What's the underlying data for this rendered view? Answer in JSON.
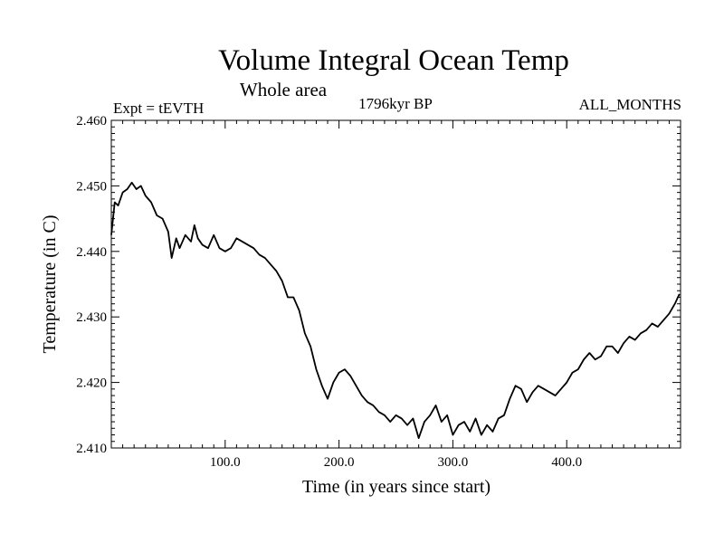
{
  "chart_data": {
    "type": "line",
    "title": "Volume Integral Ocean Temp",
    "subtitle": "Whole area",
    "left_label": "Expt = tEVTH",
    "center_label": "1796kyr BP",
    "right_label": "ALL_MONTHS",
    "xlabel": "Time (in years since start)",
    "ylabel": "Temperature (in C)",
    "xlim": [
      0,
      500
    ],
    "ylim": [
      2.41,
      2.46
    ],
    "x_ticks": [
      {
        "value": 100,
        "label": "100.0"
      },
      {
        "value": 200,
        "label": "200.0"
      },
      {
        "value": 300,
        "label": "300.0"
      },
      {
        "value": 400,
        "label": "400.0"
      }
    ],
    "y_ticks": [
      {
        "value": 2.41,
        "label": "2.410"
      },
      {
        "value": 2.42,
        "label": "2.420"
      },
      {
        "value": 2.43,
        "label": "2.430"
      },
      {
        "value": 2.44,
        "label": "2.440"
      },
      {
        "value": 2.45,
        "label": "2.450"
      },
      {
        "value": 2.46,
        "label": "2.460"
      }
    ],
    "series": [
      {
        "name": "Volume Integral Ocean Temp",
        "x": [
          0,
          3,
          6,
          10,
          14,
          18,
          22,
          26,
          30,
          35,
          40,
          45,
          50,
          53,
          57,
          60,
          65,
          70,
          73,
          76,
          80,
          85,
          90,
          95,
          100,
          105,
          110,
          115,
          120,
          125,
          130,
          135,
          140,
          145,
          150,
          155,
          160,
          165,
          170,
          175,
          180,
          185,
          190,
          195,
          200,
          205,
          210,
          215,
          220,
          225,
          230,
          235,
          240,
          245,
          250,
          255,
          260,
          265,
          270,
          275,
          280,
          285,
          290,
          295,
          300,
          305,
          310,
          315,
          320,
          325,
          330,
          335,
          340,
          345,
          350,
          355,
          360,
          365,
          370,
          375,
          380,
          385,
          390,
          395,
          400,
          405,
          410,
          415,
          420,
          425,
          430,
          435,
          440,
          445,
          450,
          455,
          460,
          465,
          470,
          475,
          480,
          485,
          490,
          495,
          499
        ],
        "values": [
          2.4425,
          2.4475,
          2.447,
          2.449,
          2.4495,
          2.4505,
          2.4495,
          2.45,
          2.4485,
          2.4475,
          2.4455,
          2.445,
          2.443,
          2.439,
          2.442,
          2.4405,
          2.4425,
          2.4415,
          2.444,
          2.442,
          2.441,
          2.4405,
          2.4425,
          2.4405,
          2.44,
          2.4405,
          2.442,
          2.4415,
          2.441,
          2.4405,
          2.4395,
          2.439,
          2.438,
          2.437,
          2.4355,
          2.433,
          2.433,
          2.431,
          2.4275,
          2.4255,
          2.422,
          2.4195,
          2.4175,
          2.42,
          2.4215,
          2.422,
          2.421,
          2.4195,
          2.418,
          2.417,
          2.4165,
          2.4155,
          2.415,
          2.414,
          2.415,
          2.4145,
          2.4135,
          2.4145,
          2.4115,
          2.414,
          2.415,
          2.4165,
          2.414,
          2.415,
          2.412,
          2.4135,
          2.414,
          2.4125,
          2.4145,
          2.412,
          2.4135,
          2.4125,
          2.4145,
          2.415,
          2.4175,
          2.4195,
          2.419,
          2.417,
          2.4185,
          2.4195,
          2.419,
          2.4185,
          2.418,
          2.419,
          2.42,
          2.4215,
          2.422,
          2.4235,
          2.4245,
          2.4235,
          2.424,
          2.4255,
          2.4255,
          2.4245,
          2.426,
          2.427,
          2.4265,
          2.4275,
          2.428,
          2.429,
          2.4285,
          2.4295,
          2.4305,
          2.432,
          2.4335
        ]
      }
    ],
    "grid": false,
    "legend": "none"
  }
}
